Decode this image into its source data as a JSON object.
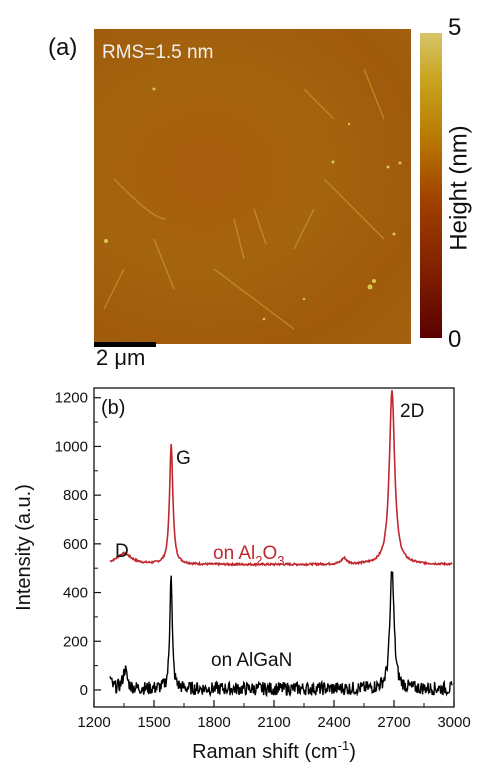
{
  "panel_a": {
    "label": "(a)",
    "rms": "RMS=1.5 nm",
    "colorbar_title": "Height (nm)",
    "colorbar_max": "5",
    "colorbar_min": "0",
    "scalebar_text": "2 μm"
  },
  "chart_data": {
    "type": "line",
    "panel_label": "(b)",
    "xlabel_main": "Raman shift (cm",
    "xlabel_sup": "-1",
    "xlabel_end": ")",
    "ylabel": "Intensity (a.u.)",
    "xlim": [
      1200,
      3000
    ],
    "ylim": [
      -70,
      1240
    ],
    "xticks": [
      1200,
      1500,
      1800,
      2100,
      2400,
      2700,
      3000
    ],
    "yticks": [
      0,
      200,
      400,
      600,
      800,
      1000,
      1200
    ],
    "annotations": {
      "D": "D",
      "G": "G",
      "D2": "2D",
      "sapphire_label": {
        "pre": "on Al",
        "sub1": "2",
        "mid": "O",
        "sub2": "3"
      },
      "algan_label": "on AlGaN"
    },
    "series": [
      {
        "name": "on Al2O3",
        "color": "#c0282d",
        "baseline": 515,
        "peaks": [
          {
            "center": 1350,
            "height": 45,
            "width": 45
          },
          {
            "center": 1586,
            "height": 490,
            "width": 10
          },
          {
            "center": 2450,
            "height": 25,
            "width": 15
          },
          {
            "center": 2690,
            "height": 715,
            "width": 16
          }
        ]
      },
      {
        "name": "on AlGaN",
        "color": "#000000",
        "baseline": 5,
        "peaks": [
          {
            "center": 1280,
            "height": 40,
            "width": 8
          },
          {
            "center": 1355,
            "height": 80,
            "width": 12
          },
          {
            "center": 1585,
            "height": 485,
            "width": 7
          },
          {
            "center": 2690,
            "height": 495,
            "width": 12
          }
        ]
      }
    ]
  },
  "colors": {
    "sapphire": "#c0282d",
    "algan": "#000000",
    "afm_spots": "#e6e25a"
  }
}
